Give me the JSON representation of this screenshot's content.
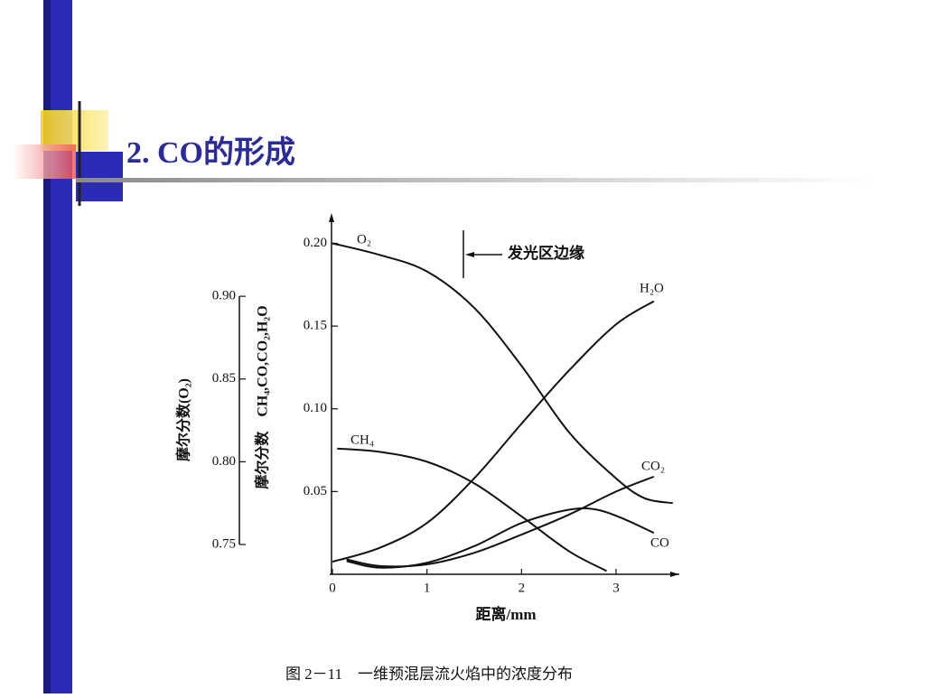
{
  "slide": {
    "title": "2. CO的形成",
    "caption": "图 2－11　一维预混层流火焰中的浓度分布"
  },
  "chart_data": {
    "type": "line",
    "xlabel": "距离/mm",
    "ylabel": "摩尔分数　CH₄,CO,CO₂,H₂O",
    "y2label": "摩尔分数(O₂)",
    "annotation": "发光区边缘",
    "xlim": [
      0,
      3.65
    ],
    "xticks": [
      0,
      1,
      2,
      3
    ],
    "ylim": [
      0,
      0.215
    ],
    "yticks": [
      0.05,
      {
        "value": 0.1,
        "label": "0.10"
      },
      0.15,
      {
        "value": 0.2,
        "label": "0.20"
      }
    ],
    "y2lim": [
      0.732,
      0.947
    ],
    "y2ticks": [
      0.75,
      {
        "value": 0.8,
        "label": "0.80"
      },
      0.85,
      {
        "value": 0.9,
        "label": "0.90"
      }
    ],
    "color": "#111111",
    "series": [
      {
        "name": "O₂",
        "axis": "y2",
        "x": [
          0,
          0.5,
          1,
          1.5,
          2,
          2.5,
          3,
          3.3,
          3.6
        ],
        "values": [
          0.932,
          0.925,
          0.915,
          0.893,
          0.858,
          0.818,
          0.79,
          0.778,
          0.775
        ]
      },
      {
        "name": "H₂O",
        "x": [
          0,
          0.5,
          1,
          1.5,
          2,
          2.5,
          3,
          3.4
        ],
        "values": [
          0.0076,
          0.016,
          0.031,
          0.058,
          0.091,
          0.123,
          0.151,
          0.165
        ]
      },
      {
        "name": "CH₄",
        "x": [
          0.05,
          0.5,
          1,
          1.5,
          2,
          2.5,
          2.9
        ],
        "values": [
          0.076,
          0.074,
          0.068,
          0.055,
          0.035,
          0.014,
          0.002
        ]
      },
      {
        "name": "CO₂",
        "x": [
          0.15,
          0.5,
          1,
          1.5,
          2,
          2.5,
          3,
          3.4
        ],
        "values": [
          0.009,
          0.005,
          0.006,
          0.013,
          0.024,
          0.036,
          0.05,
          0.059
        ]
      },
      {
        "name": "CO",
        "x": [
          0.15,
          0.5,
          1,
          1.5,
          2,
          2.5,
          2.8,
          3.1,
          3.4
        ],
        "values": [
          0.008,
          0.004,
          0.007,
          0.017,
          0.031,
          0.039,
          0.039,
          0.033,
          0.025
        ]
      }
    ]
  }
}
